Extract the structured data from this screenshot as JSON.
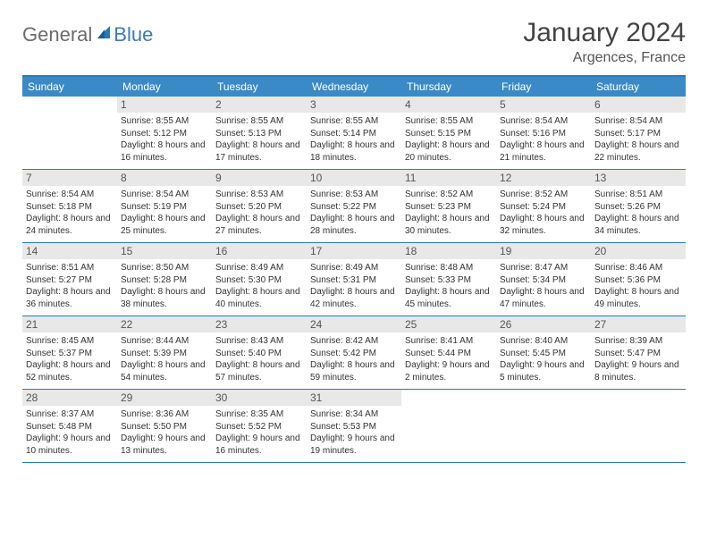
{
  "logo": {
    "text1": "General",
    "text2": "Blue"
  },
  "title": "January 2024",
  "location": "Argences, France",
  "weekdays": [
    "Sunday",
    "Monday",
    "Tuesday",
    "Wednesday",
    "Thursday",
    "Friday",
    "Saturday"
  ],
  "colors": {
    "header_bg": "#3a8ac8",
    "header_text": "#ffffff",
    "border": "#2a7ab8",
    "daynum_bg": "#e8e8e8",
    "logo_gray": "#6b6b6b",
    "logo_blue": "#3a7ab8",
    "body_text": "#333333"
  },
  "weeks": [
    [
      {
        "num": "",
        "sunrise": "",
        "sunset": "",
        "daylight": ""
      },
      {
        "num": "1",
        "sunrise": "Sunrise: 8:55 AM",
        "sunset": "Sunset: 5:12 PM",
        "daylight": "Daylight: 8 hours and 16 minutes."
      },
      {
        "num": "2",
        "sunrise": "Sunrise: 8:55 AM",
        "sunset": "Sunset: 5:13 PM",
        "daylight": "Daylight: 8 hours and 17 minutes."
      },
      {
        "num": "3",
        "sunrise": "Sunrise: 8:55 AM",
        "sunset": "Sunset: 5:14 PM",
        "daylight": "Daylight: 8 hours and 18 minutes."
      },
      {
        "num": "4",
        "sunrise": "Sunrise: 8:55 AM",
        "sunset": "Sunset: 5:15 PM",
        "daylight": "Daylight: 8 hours and 20 minutes."
      },
      {
        "num": "5",
        "sunrise": "Sunrise: 8:54 AM",
        "sunset": "Sunset: 5:16 PM",
        "daylight": "Daylight: 8 hours and 21 minutes."
      },
      {
        "num": "6",
        "sunrise": "Sunrise: 8:54 AM",
        "sunset": "Sunset: 5:17 PM",
        "daylight": "Daylight: 8 hours and 22 minutes."
      }
    ],
    [
      {
        "num": "7",
        "sunrise": "Sunrise: 8:54 AM",
        "sunset": "Sunset: 5:18 PM",
        "daylight": "Daylight: 8 hours and 24 minutes."
      },
      {
        "num": "8",
        "sunrise": "Sunrise: 8:54 AM",
        "sunset": "Sunset: 5:19 PM",
        "daylight": "Daylight: 8 hours and 25 minutes."
      },
      {
        "num": "9",
        "sunrise": "Sunrise: 8:53 AM",
        "sunset": "Sunset: 5:20 PM",
        "daylight": "Daylight: 8 hours and 27 minutes."
      },
      {
        "num": "10",
        "sunrise": "Sunrise: 8:53 AM",
        "sunset": "Sunset: 5:22 PM",
        "daylight": "Daylight: 8 hours and 28 minutes."
      },
      {
        "num": "11",
        "sunrise": "Sunrise: 8:52 AM",
        "sunset": "Sunset: 5:23 PM",
        "daylight": "Daylight: 8 hours and 30 minutes."
      },
      {
        "num": "12",
        "sunrise": "Sunrise: 8:52 AM",
        "sunset": "Sunset: 5:24 PM",
        "daylight": "Daylight: 8 hours and 32 minutes."
      },
      {
        "num": "13",
        "sunrise": "Sunrise: 8:51 AM",
        "sunset": "Sunset: 5:26 PM",
        "daylight": "Daylight: 8 hours and 34 minutes."
      }
    ],
    [
      {
        "num": "14",
        "sunrise": "Sunrise: 8:51 AM",
        "sunset": "Sunset: 5:27 PM",
        "daylight": "Daylight: 8 hours and 36 minutes."
      },
      {
        "num": "15",
        "sunrise": "Sunrise: 8:50 AM",
        "sunset": "Sunset: 5:28 PM",
        "daylight": "Daylight: 8 hours and 38 minutes."
      },
      {
        "num": "16",
        "sunrise": "Sunrise: 8:49 AM",
        "sunset": "Sunset: 5:30 PM",
        "daylight": "Daylight: 8 hours and 40 minutes."
      },
      {
        "num": "17",
        "sunrise": "Sunrise: 8:49 AM",
        "sunset": "Sunset: 5:31 PM",
        "daylight": "Daylight: 8 hours and 42 minutes."
      },
      {
        "num": "18",
        "sunrise": "Sunrise: 8:48 AM",
        "sunset": "Sunset: 5:33 PM",
        "daylight": "Daylight: 8 hours and 45 minutes."
      },
      {
        "num": "19",
        "sunrise": "Sunrise: 8:47 AM",
        "sunset": "Sunset: 5:34 PM",
        "daylight": "Daylight: 8 hours and 47 minutes."
      },
      {
        "num": "20",
        "sunrise": "Sunrise: 8:46 AM",
        "sunset": "Sunset: 5:36 PM",
        "daylight": "Daylight: 8 hours and 49 minutes."
      }
    ],
    [
      {
        "num": "21",
        "sunrise": "Sunrise: 8:45 AM",
        "sunset": "Sunset: 5:37 PM",
        "daylight": "Daylight: 8 hours and 52 minutes."
      },
      {
        "num": "22",
        "sunrise": "Sunrise: 8:44 AM",
        "sunset": "Sunset: 5:39 PM",
        "daylight": "Daylight: 8 hours and 54 minutes."
      },
      {
        "num": "23",
        "sunrise": "Sunrise: 8:43 AM",
        "sunset": "Sunset: 5:40 PM",
        "daylight": "Daylight: 8 hours and 57 minutes."
      },
      {
        "num": "24",
        "sunrise": "Sunrise: 8:42 AM",
        "sunset": "Sunset: 5:42 PM",
        "daylight": "Daylight: 8 hours and 59 minutes."
      },
      {
        "num": "25",
        "sunrise": "Sunrise: 8:41 AM",
        "sunset": "Sunset: 5:44 PM",
        "daylight": "Daylight: 9 hours and 2 minutes."
      },
      {
        "num": "26",
        "sunrise": "Sunrise: 8:40 AM",
        "sunset": "Sunset: 5:45 PM",
        "daylight": "Daylight: 9 hours and 5 minutes."
      },
      {
        "num": "27",
        "sunrise": "Sunrise: 8:39 AM",
        "sunset": "Sunset: 5:47 PM",
        "daylight": "Daylight: 9 hours and 8 minutes."
      }
    ],
    [
      {
        "num": "28",
        "sunrise": "Sunrise: 8:37 AM",
        "sunset": "Sunset: 5:48 PM",
        "daylight": "Daylight: 9 hours and 10 minutes."
      },
      {
        "num": "29",
        "sunrise": "Sunrise: 8:36 AM",
        "sunset": "Sunset: 5:50 PM",
        "daylight": "Daylight: 9 hours and 13 minutes."
      },
      {
        "num": "30",
        "sunrise": "Sunrise: 8:35 AM",
        "sunset": "Sunset: 5:52 PM",
        "daylight": "Daylight: 9 hours and 16 minutes."
      },
      {
        "num": "31",
        "sunrise": "Sunrise: 8:34 AM",
        "sunset": "Sunset: 5:53 PM",
        "daylight": "Daylight: 9 hours and 19 minutes."
      },
      {
        "num": "",
        "sunrise": "",
        "sunset": "",
        "daylight": ""
      },
      {
        "num": "",
        "sunrise": "",
        "sunset": "",
        "daylight": ""
      },
      {
        "num": "",
        "sunrise": "",
        "sunset": "",
        "daylight": ""
      }
    ]
  ]
}
